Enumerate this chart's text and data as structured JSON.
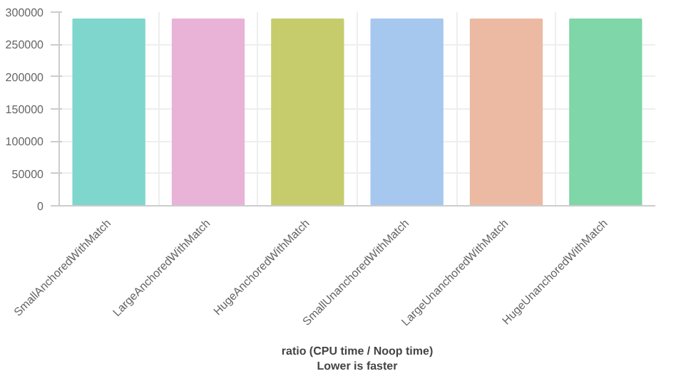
{
  "chart_data": {
    "type": "bar",
    "xlabel": "ratio (CPU time / Noop time)\nLower is faster",
    "categories": [
      "SmallAnchoredWithMatch",
      "LargeAnchoredWithMatch",
      "HugeAnchoredWithMatch",
      "SmallUnanchoredWithMatch",
      "LargeUnanchoredWithMatch",
      "HugeUnanchoredWithMatch"
    ],
    "values": [
      289000,
      289000,
      289000,
      289000,
      289000,
      289000
    ],
    "colors": [
      "#7fd6cc",
      "#e9b3d8",
      "#c6cc6c",
      "#a6c8ee",
      "#ecbaa3",
      "#7fd6a8"
    ],
    "ylim": [
      0,
      300000
    ],
    "yticks": [
      0,
      50000,
      100000,
      150000,
      200000,
      250000,
      300000
    ],
    "grid": true
  }
}
